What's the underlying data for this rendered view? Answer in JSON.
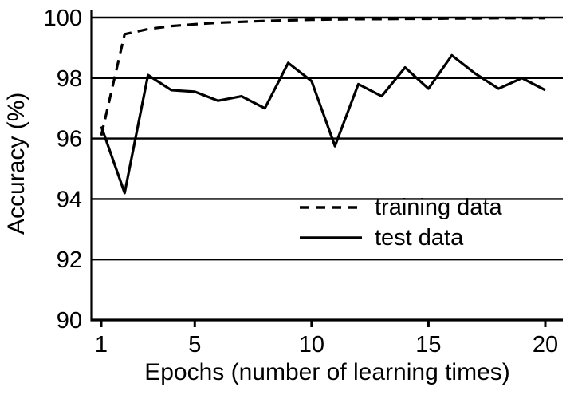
{
  "chart_data": {
    "type": "line",
    "title": "",
    "xlabel": "Epochs (number of learning times)",
    "ylabel": "Accuracy (%)",
    "xlim": [
      1,
      20
    ],
    "ylim": [
      90,
      100
    ],
    "xticks": [
      1,
      5,
      10,
      15,
      20
    ],
    "yticks": [
      90,
      92,
      94,
      96,
      98,
      100
    ],
    "grid": "horizontal",
    "legend_position": "lower-right",
    "line_color": "#000000",
    "background_color": "#ffffff",
    "x": [
      1,
      2,
      3,
      4,
      5,
      6,
      7,
      8,
      9,
      10,
      11,
      12,
      13,
      14,
      15,
      16,
      17,
      18,
      19,
      20
    ],
    "series": [
      {
        "name": "training data",
        "style": "dashed",
        "values": [
          96.1,
          99.45,
          99.62,
          99.72,
          99.78,
          99.83,
          99.86,
          99.89,
          99.91,
          99.93,
          99.94,
          99.95,
          99.95,
          99.96,
          99.96,
          99.97,
          99.97,
          99.98,
          99.98,
          99.98
        ]
      },
      {
        "name": "test data",
        "style": "solid",
        "values": [
          96.4,
          94.2,
          98.1,
          97.6,
          97.55,
          97.25,
          97.4,
          97.0,
          98.5,
          97.9,
          95.75,
          97.8,
          97.4,
          98.35,
          97.65,
          98.75,
          98.15,
          97.65,
          98.0,
          97.6
        ]
      }
    ]
  }
}
